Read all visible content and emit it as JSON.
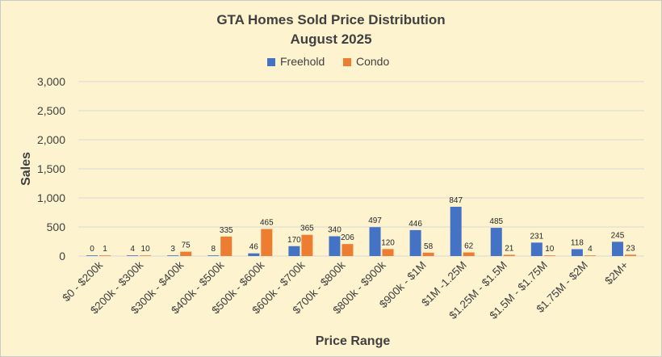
{
  "chart_data": {
    "type": "bar",
    "title": "GTA Homes Sold Price Distribution",
    "subtitle": "August 2025",
    "xlabel": "Price Range",
    "ylabel": "Sales",
    "ylim": [
      0,
      3000
    ],
    "yticks": [
      0,
      500,
      1000,
      1500,
      2000,
      2500,
      3000
    ],
    "ytick_labels": [
      "0",
      "500",
      "1,000",
      "1,500",
      "2,000",
      "2,500",
      "3,000"
    ],
    "grid": true,
    "legend_position": "top",
    "categories": [
      "$0 - $200k",
      "$200k - $300k",
      "$300k - $400k",
      "$400k - $500k",
      "$500k - $600k",
      "$600k - $700k",
      "$700k - $800k",
      "$800k - $900k",
      "$900k - $1M",
      "$1M -1.25M",
      "$1.25M - $1.5M",
      "$1.5M - $1.75M",
      "$1.75M - $2M",
      "$2M+"
    ],
    "series": [
      {
        "name": "Freehold",
        "color": "#4472c4",
        "values": [
          0,
          4,
          3,
          8,
          46,
          170,
          340,
          497,
          446,
          847,
          485,
          231,
          118,
          245
        ]
      },
      {
        "name": "Condo",
        "color": "#ed7d31",
        "values": [
          1,
          10,
          75,
          335,
          465,
          365,
          206,
          120,
          58,
          62,
          21,
          10,
          4,
          23
        ]
      }
    ]
  },
  "colors": {
    "background": "#fdf3cf",
    "gridline": "#d9d9d9",
    "text": "#404040"
  }
}
